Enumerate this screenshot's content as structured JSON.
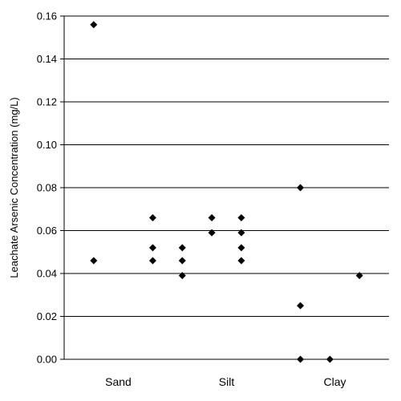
{
  "chart_data": {
    "type": "scatter",
    "title": "",
    "xlabel": "",
    "ylabel": "Leachate Arsenic Concentration (mg/L)",
    "categories": [
      "Sand",
      "Silt",
      "Clay"
    ],
    "ylim": [
      0,
      0.16
    ],
    "yticks": [
      "0.00",
      "0.02",
      "0.04",
      "0.06",
      "0.08",
      "0.10",
      "0.12",
      "0.14",
      "0.16"
    ],
    "grid": true,
    "legend": "none",
    "marker": "diamond",
    "marker_color": "#000000",
    "series": [
      {
        "points": [
          {
            "x": 1,
            "y": 0.156
          },
          {
            "x": 1,
            "y": 0.046
          },
          {
            "x": 3,
            "y": 0.066
          },
          {
            "x": 3,
            "y": 0.052
          },
          {
            "x": 3,
            "y": 0.046
          },
          {
            "x": 4,
            "y": 0.052
          },
          {
            "x": 4,
            "y": 0.046
          },
          {
            "x": 4,
            "y": 0.039
          },
          {
            "x": 5,
            "y": 0.066
          },
          {
            "x": 5,
            "y": 0.059
          },
          {
            "x": 6,
            "y": 0.066
          },
          {
            "x": 6,
            "y": 0.059
          },
          {
            "x": 6,
            "y": 0.052
          },
          {
            "x": 6,
            "y": 0.046
          },
          {
            "x": 8,
            "y": 0.08
          },
          {
            "x": 8,
            "y": 0.025
          },
          {
            "x": 8,
            "y": 0.0
          },
          {
            "x": 9,
            "y": 0.0
          },
          {
            "x": 10,
            "y": 0.039
          }
        ]
      }
    ]
  }
}
